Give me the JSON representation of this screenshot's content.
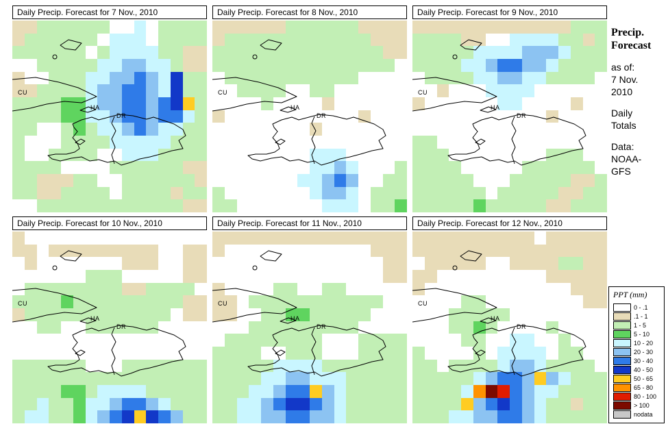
{
  "sidebar": {
    "title_line1": "Precip.",
    "title_line2": "Forecast",
    "as_of_label": "as of:",
    "as_of_line1": "7 Nov.",
    "as_of_line2": "2010",
    "totals_line1": "Daily",
    "totals_line2": "Totals",
    "data_label": "Data:",
    "source_line1": "NOAA-",
    "source_line2": "GFS"
  },
  "map_labels": {
    "cuba": "CU",
    "haiti": "HA",
    "dominican_republic": "DR"
  },
  "chart_data": {
    "type": "heatmap",
    "title": "Daily Precipitation Forecast grids over Cuba / Haiti / Dominican Republic",
    "units": "mm",
    "issued": "7 Nov. 2010",
    "source": "NOAA-GFS",
    "grid_shape": {
      "rows": 15,
      "cols": 16
    },
    "legend": {
      "title": "PPT (mm)",
      "bins": [
        {
          "code": "w",
          "label": "0 - .1",
          "color": "#FFFFFF"
        },
        {
          "code": "t",
          "label": ".1 - 1",
          "color": "#E8DCB8"
        },
        {
          "code": "g",
          "label": "1 - 5",
          "color": "#C2EFB5"
        },
        {
          "code": "G",
          "label": "5 - 10",
          "color": "#5FD45F"
        },
        {
          "code": "c",
          "label": "10 - 20",
          "color": "#C9F6FF"
        },
        {
          "code": "C",
          "label": "20 - 30",
          "color": "#8CC3F2"
        },
        {
          "code": "b",
          "label": "30 - 40",
          "color": "#2F7BE8"
        },
        {
          "code": "B",
          "label": "40 - 50",
          "color": "#1238C8"
        },
        {
          "code": "y",
          "label": "50 - 65",
          "color": "#FFCC22"
        },
        {
          "code": "o",
          "label": "65 - 80",
          "color": "#FF9200"
        },
        {
          "code": "r",
          "label": "80 - 100",
          "color": "#E01C00"
        },
        {
          "code": "R",
          "label": "> 100",
          "color": "#7C0A00"
        },
        {
          "code": "n",
          "label": "nodata",
          "color": "#C8C8C8"
        }
      ]
    },
    "panels": [
      {
        "date": "7 Nov., 2010",
        "title": "Daily Precip. Forecast for 7 Nov., 2010",
        "grid": [
          "ttggggggwwcwgggg",
          "tggggggwcccwgggg",
          "ggggggwgccccggtt",
          "wwgggggccCCccgtt",
          "twwgggccCCbCcBgg",
          "ttggggcCCbbCcBgg",
          "ggggGGcCCbbCbByg",
          "ggggGGccCbbCbbcg",
          "ggwwgGgccCbCccgg",
          "gwwwggggcccccggg",
          "gwwggggwwcccgggg",
          "ggggwwwwggggggtt",
          "ggtttggwwggggggt",
          "ggttggggwggggtgg",
          "wwggggggggggggtt"
        ]
      },
      {
        "date": "8 Nov., 2010",
        "title": "Daily Precip. Forecast for 8 Nov., 2010",
        "grid": [
          "ttttttggggggtttt",
          "tggggggggggggttt",
          "ggggggggggggggtt",
          "gggggggggggggggw",
          "wgggggggggggwwww",
          "wwggggwwggwwwwww",
          "wwwwgwwwwtwwwwww",
          "twwwwwwwwwwwtwww",
          "wwwwwwwwtwwwwwww",
          "wwwwwwwwwwwwwwww",
          "wwwwwwwwcccwwwww",
          "wwwwwwwwccCcwwwg",
          "wwwwwwwccCbCwwgg",
          "gwwwwwwwcCCcwggg",
          "ggwwwwwwwcccwggG"
        ]
      },
      {
        "date": "9 Nov., 2010",
        "title": "Daily Precip. Forecast for 9 Nov., 2010",
        "grid": [
          "tttttttttttttggg",
          "ggggttwwccccggtg",
          "gggggccccCCCcggg",
          "ggggccCbbCCcgggg",
          "wggggccCCccggggw",
          "wwtwwwccccwwwwww",
          "twwwwwwccwwwwtww",
          "wwwwwwwwwwwtwwww",
          "wwwwwwwwwwwwwwww",
          "ggwwwwwwwwwwwwww",
          "gggwwwwwwwwgggww",
          "ggggwwwwwggggggw",
          "gggggwwwgggggttg",
          "ggggggwgggggttgg",
          "gggggGgggggttggg"
        ]
      },
      {
        "date": "10 Nov., 2010",
        "title": "Daily Precip. Forecast for 10 Nov., 2010",
        "grid": [
          "twwwwwwwwwwwwwww",
          "ttwtttttttttwwtt",
          "wtwwwwwwwtttwwtt",
          "wwwwwwgggwwwwwtt",
          "wggggggggttggggw",
          "ggggGgggggggggtt",
          "tggggggggggggwtt",
          "wwggwwggggggwwww",
          "wwwwwwwwwwwwwwww",
          "wwwwwwwwwwwwwwww",
          "ggggggwwwggggggg",
          "gggggggggggggggg",
          "ggggGGgccccggggg",
          "ggcggGccCbbCcggg",
          "gccggGcCbByBbCgg"
        ]
      },
      {
        "date": "11 Nov., 2010",
        "title": "Daily Precip. Forecast for 11 Nov., 2010",
        "grid": [
          "tttttttttttttttt",
          "twwwwwwwwwwwwttt",
          "wwwwwwwwwwwwwwtt",
          "wwwwwwwwwwwwwwtt",
          "twwwwggwwggwwwww",
          "ttwgggggggggggww",
          "ttwwggGGgggggwww",
          "wwwgggggggggwwww",
          "wggggggggwwwgggg",
          "ggggwwgggwwwgggg",
          "gggggccccggggggg",
          "ggggccCCcccggggg",
          "gggccCbbyCcggggg",
          "ggccCbBBbCcggggg",
          "ggccCCbbCCcggggg"
        ]
      },
      {
        "date": "12 Nov., 2010",
        "title": "Daily Precip. Forecast for 12 Nov., 2010",
        "grid": [
          "ttttttttttwttttt",
          "tttttttttttttttt",
          "wtttttwwttttggtt",
          "ttwwwwwwwwwttttt",
          "twwwwwwwwwwwwttt",
          "wwwwggwwwwwwwwtt",
          "wwwgggggwwwwwwww",
          "wwwggGgwwwwgwwww",
          "wwwwggwwccwwgwww",
          "gwwwwgwccccwggww",
          "ggwggggcCCcggggw",
          "gggggcCbbCyCcggg",
          "ggggcoRrbCccgggg",
          "ggggyCbBbCcggtgg",
          "gggccCCbbCcggggg"
        ]
      }
    ]
  }
}
